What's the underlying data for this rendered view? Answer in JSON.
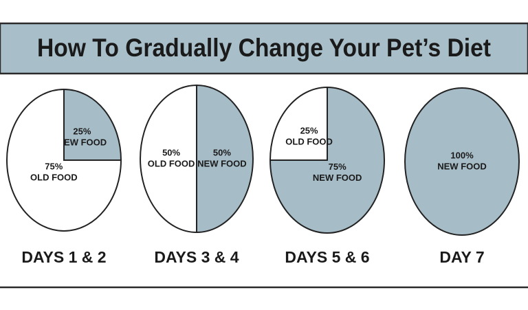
{
  "title": "How To Gradually Change Your Pet’s Diet",
  "chart_data": [
    {
      "type": "pie",
      "title": "DAYS 1 & 2",
      "categories": [
        "NEW FOOD",
        "OLD FOOD"
      ],
      "values": [
        25,
        75
      ],
      "value_labels": [
        "25%",
        "75%"
      ],
      "colors": [
        "#a6bcc7",
        "#ffffff"
      ]
    },
    {
      "type": "pie",
      "title": "DAYS 3 & 4",
      "categories": [
        "NEW FOOD",
        "OLD FOOD"
      ],
      "values": [
        50,
        50
      ],
      "value_labels": [
        "50%",
        "50%"
      ],
      "colors": [
        "#a6bcc7",
        "#ffffff"
      ]
    },
    {
      "type": "pie",
      "title": "DAYS 5 & 6",
      "categories": [
        "NEW FOOD",
        "OLD FOOD"
      ],
      "values": [
        75,
        25
      ],
      "value_labels": [
        "75%",
        "25%"
      ],
      "colors": [
        "#a6bcc7",
        "#ffffff"
      ]
    },
    {
      "type": "pie",
      "title": "DAY 7",
      "categories": [
        "NEW FOOD"
      ],
      "values": [
        100
      ],
      "value_labels": [
        "100%"
      ],
      "colors": [
        "#a6bcc7"
      ]
    }
  ]
}
